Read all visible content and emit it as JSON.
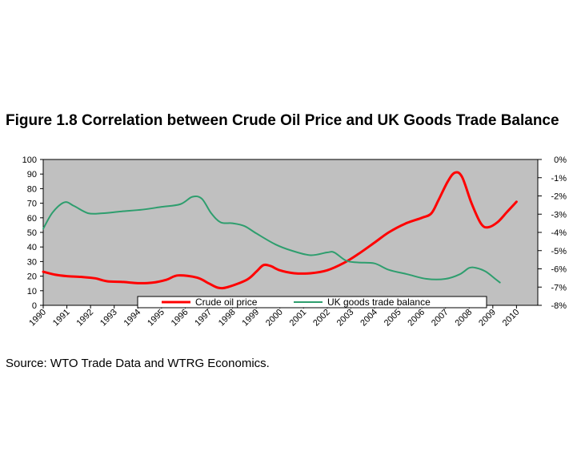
{
  "figure": {
    "title": "Figure 1.8 Correlation between Crude Oil Price and UK Goods Trade Balance",
    "source": "Source: WTO Trade Data and WTRG Economics."
  },
  "chart_data": {
    "type": "line",
    "x_categories": [
      "1990",
      "1991",
      "1992",
      "1993",
      "1994",
      "1995",
      "1996",
      "1997",
      "1998",
      "1999",
      "2000",
      "2001",
      "2002",
      "2003",
      "2004",
      "2005",
      "2006",
      "2007",
      "2008",
      "2009",
      "2010"
    ],
    "y_left": {
      "ylim": [
        0,
        100
      ],
      "ticks": [
        0,
        10,
        20,
        30,
        40,
        50,
        60,
        70,
        80,
        90,
        100
      ],
      "tick_labels": [
        "0",
        "10",
        "20",
        "30",
        "40",
        "50",
        "60",
        "70",
        "80",
        "90",
        "100"
      ]
    },
    "y_right": {
      "ylim": [
        -8,
        0
      ],
      "ticks": [
        0,
        -1,
        -2,
        -3,
        -4,
        -5,
        -6,
        -7,
        -8
      ],
      "tick_labels": [
        "0%",
        "-1%",
        "-2%",
        "-3%",
        "-4%",
        "-5%",
        "-6%",
        "-7%",
        "-8%"
      ]
    },
    "series": [
      {
        "name": "Crude oil price",
        "axis": "left",
        "color": "#ff0000",
        "points": [
          {
            "x": 1990.0,
            "y": 23
          },
          {
            "x": 1990.5,
            "y": 21
          },
          {
            "x": 1991.0,
            "y": 20
          },
          {
            "x": 1991.6,
            "y": 19.5
          },
          {
            "x": 1992.2,
            "y": 18.5
          },
          {
            "x": 1992.7,
            "y": 16.5
          },
          {
            "x": 1993.4,
            "y": 16
          },
          {
            "x": 1994.0,
            "y": 15.2
          },
          {
            "x": 1994.6,
            "y": 15.5
          },
          {
            "x": 1995.2,
            "y": 17.5
          },
          {
            "x": 1995.7,
            "y": 20.5
          },
          {
            "x": 1996.5,
            "y": 19
          },
          {
            "x": 1997.0,
            "y": 15
          },
          {
            "x": 1997.4,
            "y": 12
          },
          {
            "x": 1997.8,
            "y": 12.5
          },
          {
            "x": 1998.6,
            "y": 17.5
          },
          {
            "x": 1999.0,
            "y": 23
          },
          {
            "x": 1999.3,
            "y": 27.5
          },
          {
            "x": 1999.6,
            "y": 27
          },
          {
            "x": 2000.0,
            "y": 24
          },
          {
            "x": 2000.6,
            "y": 22
          },
          {
            "x": 2001.3,
            "y": 22
          },
          {
            "x": 2002.0,
            "y": 24
          },
          {
            "x": 2002.7,
            "y": 29
          },
          {
            "x": 2003.3,
            "y": 35
          },
          {
            "x": 2004.0,
            "y": 43
          },
          {
            "x": 2004.6,
            "y": 50
          },
          {
            "x": 2005.3,
            "y": 56
          },
          {
            "x": 2006.0,
            "y": 60
          },
          {
            "x": 2006.4,
            "y": 63
          },
          {
            "x": 2006.7,
            "y": 72
          },
          {
            "x": 2007.1,
            "y": 85
          },
          {
            "x": 2007.4,
            "y": 91
          },
          {
            "x": 2007.7,
            "y": 88
          },
          {
            "x": 2008.1,
            "y": 70
          },
          {
            "x": 2008.5,
            "y": 56
          },
          {
            "x": 2008.8,
            "y": 53.5
          },
          {
            "x": 2009.2,
            "y": 57
          },
          {
            "x": 2009.6,
            "y": 64
          },
          {
            "x": 2010.0,
            "y": 71
          }
        ]
      },
      {
        "name": "UK goods trade balance",
        "axis": "right",
        "color": "#2e9e6e",
        "points": [
          {
            "x": 1990.0,
            "y": -3.8
          },
          {
            "x": 1990.4,
            "y": -2.9
          },
          {
            "x": 1990.9,
            "y": -2.35
          },
          {
            "x": 1991.3,
            "y": -2.55
          },
          {
            "x": 1991.9,
            "y": -2.95
          },
          {
            "x": 1992.5,
            "y": -2.95
          },
          {
            "x": 1993.3,
            "y": -2.85
          },
          {
            "x": 1994.2,
            "y": -2.75
          },
          {
            "x": 1995.0,
            "y": -2.6
          },
          {
            "x": 1995.8,
            "y": -2.45
          },
          {
            "x": 1996.3,
            "y": -2.05
          },
          {
            "x": 1996.7,
            "y": -2.15
          },
          {
            "x": 1997.1,
            "y": -2.95
          },
          {
            "x": 1997.5,
            "y": -3.45
          },
          {
            "x": 1998.0,
            "y": -3.5
          },
          {
            "x": 1998.5,
            "y": -3.65
          },
          {
            "x": 1999.0,
            "y": -4.05
          },
          {
            "x": 1999.8,
            "y": -4.65
          },
          {
            "x": 2000.5,
            "y": -5.0
          },
          {
            "x": 2001.3,
            "y": -5.25
          },
          {
            "x": 2002.0,
            "y": -5.1
          },
          {
            "x": 2002.3,
            "y": -5.1
          },
          {
            "x": 2002.8,
            "y": -5.55
          },
          {
            "x": 2003.3,
            "y": -5.65
          },
          {
            "x": 2004.0,
            "y": -5.7
          },
          {
            "x": 2004.6,
            "y": -6.05
          },
          {
            "x": 2005.4,
            "y": -6.3
          },
          {
            "x": 2006.2,
            "y": -6.55
          },
          {
            "x": 2007.0,
            "y": -6.55
          },
          {
            "x": 2007.6,
            "y": -6.3
          },
          {
            "x": 2008.0,
            "y": -5.95
          },
          {
            "x": 2008.3,
            "y": -5.95
          },
          {
            "x": 2008.7,
            "y": -6.15
          },
          {
            "x": 2009.1,
            "y": -6.55
          },
          {
            "x": 2009.3,
            "y": -6.75
          }
        ]
      }
    ],
    "legend": {
      "placement": "bottom-center",
      "entries": [
        "Crude oil price",
        "UK goods trade balance"
      ]
    },
    "plot_background": "#c0c0c0",
    "grid": false
  }
}
